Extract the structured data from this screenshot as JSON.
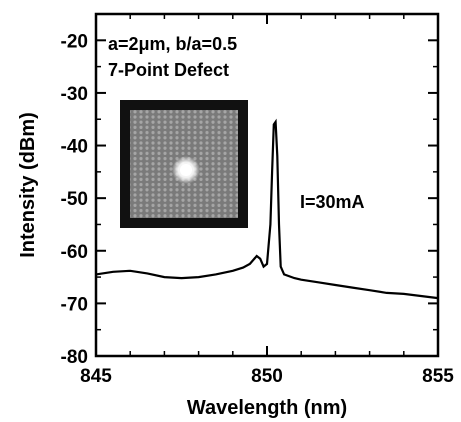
{
  "chart_data": {
    "type": "line",
    "xlabel": "Wavelength (nm)",
    "ylabel": "Intensity (dBm)",
    "xlim": [
      845,
      855
    ],
    "ylim": [
      -80,
      -15
    ],
    "xticks": [
      845,
      850,
      855
    ],
    "yticks": [
      -80,
      -70,
      -60,
      -50,
      -40,
      -30,
      -20
    ],
    "annotations": {
      "params": "a=2μm, b/a=0.5",
      "defect": "7-Point Defect",
      "current": "I=30mA"
    },
    "inset": "near-field image of laser emission",
    "series": [
      {
        "x": [
          845.0,
          845.5,
          846.0,
          846.5,
          847.0,
          847.5,
          848.0,
          848.5,
          849.0,
          849.3,
          849.5,
          849.7,
          849.8,
          849.9,
          850.0,
          850.1,
          850.15,
          850.2,
          850.25,
          850.3,
          850.35,
          850.4,
          850.5,
          850.8,
          851.0,
          851.5,
          852.0,
          852.5,
          853.0,
          853.5,
          854.0,
          854.5,
          855.0
        ],
        "y": [
          -64.5,
          -64.0,
          -63.8,
          -64.3,
          -65.0,
          -65.2,
          -65.0,
          -64.5,
          -63.8,
          -63.2,
          -62.5,
          -61.0,
          -61.5,
          -63.0,
          -62.5,
          -55.0,
          -45.0,
          -36.0,
          -35.5,
          -42.0,
          -55.0,
          -63.0,
          -64.5,
          -65.2,
          -65.5,
          -66.0,
          -66.5,
          -67.0,
          -67.5,
          -68.0,
          -68.2,
          -68.6,
          -69.0
        ]
      }
    ]
  }
}
